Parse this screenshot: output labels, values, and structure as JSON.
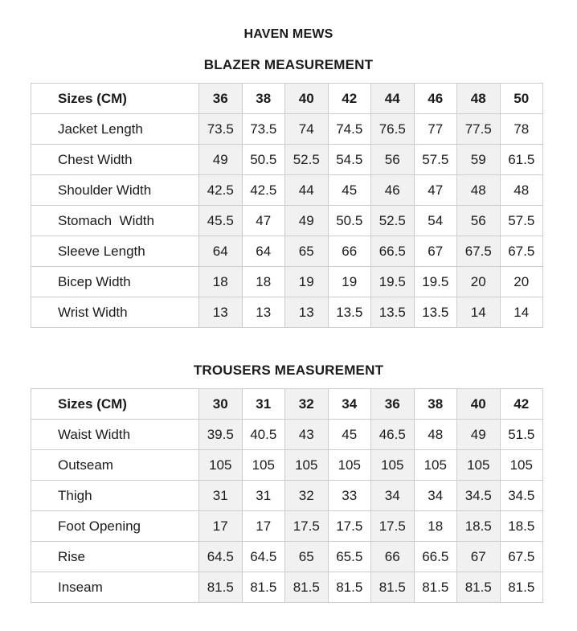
{
  "page": {
    "title": "HAVEN MEWS"
  },
  "colors": {
    "background": "#ffffff",
    "text": "#1b1b1b",
    "border": "#cccccc",
    "shaded_column_bg": "#f1f1f1"
  },
  "tables": [
    {
      "title": "BLAZER MEASUREMENT",
      "header_label": "Sizes (CM)",
      "sizes": [
        "36",
        "38",
        "40",
        "42",
        "44",
        "46",
        "48",
        "50"
      ],
      "rows": [
        {
          "label": "Jacket Length",
          "values": [
            "73.5",
            "73.5",
            "74",
            "74.5",
            "76.5",
            "77",
            "77.5",
            "78"
          ]
        },
        {
          "label": "Chest Width",
          "values": [
            "49",
            "50.5",
            "52.5",
            "54.5",
            "56",
            "57.5",
            "59",
            "61.5"
          ]
        },
        {
          "label": "Shoulder Width",
          "values": [
            "42.5",
            "42.5",
            "44",
            "45",
            "46",
            "47",
            "48",
            "48"
          ]
        },
        {
          "label": "Stomach  Width",
          "values": [
            "45.5",
            "47",
            "49",
            "50.5",
            "52.5",
            "54",
            "56",
            "57.5"
          ]
        },
        {
          "label": "Sleeve Length",
          "values": [
            "64",
            "64",
            "65",
            "66",
            "66.5",
            "67",
            "67.5",
            "67.5"
          ]
        },
        {
          "label": "Bicep Width",
          "values": [
            "18",
            "18",
            "19",
            "19",
            "19.5",
            "19.5",
            "20",
            "20"
          ]
        },
        {
          "label": "Wrist Width",
          "values": [
            "13",
            "13",
            "13",
            "13.5",
            "13.5",
            "13.5",
            "14",
            "14"
          ]
        }
      ]
    },
    {
      "title": "TROUSERS MEASUREMENT",
      "header_label": "Sizes (CM)",
      "sizes": [
        "30",
        "31",
        "32",
        "34",
        "36",
        "38",
        "40",
        "42"
      ],
      "rows": [
        {
          "label": "Waist Width",
          "values": [
            "39.5",
            "40.5",
            "43",
            "45",
            "46.5",
            "48",
            "49",
            "51.5"
          ]
        },
        {
          "label": "Outseam",
          "values": [
            "105",
            "105",
            "105",
            "105",
            "105",
            "105",
            "105",
            "105"
          ]
        },
        {
          "label": "Thigh",
          "values": [
            "31",
            "31",
            "32",
            "33",
            "34",
            "34",
            "34.5",
            "34.5"
          ]
        },
        {
          "label": "Foot Opening",
          "values": [
            "17",
            "17",
            "17.5",
            "17.5",
            "17.5",
            "18",
            "18.5",
            "18.5"
          ]
        },
        {
          "label": "Rise",
          "values": [
            "64.5",
            "64.5",
            "65",
            "65.5",
            "66",
            "66.5",
            "67",
            "67.5"
          ]
        },
        {
          "label": "Inseam",
          "values": [
            "81.5",
            "81.5",
            "81.5",
            "81.5",
            "81.5",
            "81.5",
            "81.5",
            "81.5"
          ]
        }
      ]
    }
  ]
}
